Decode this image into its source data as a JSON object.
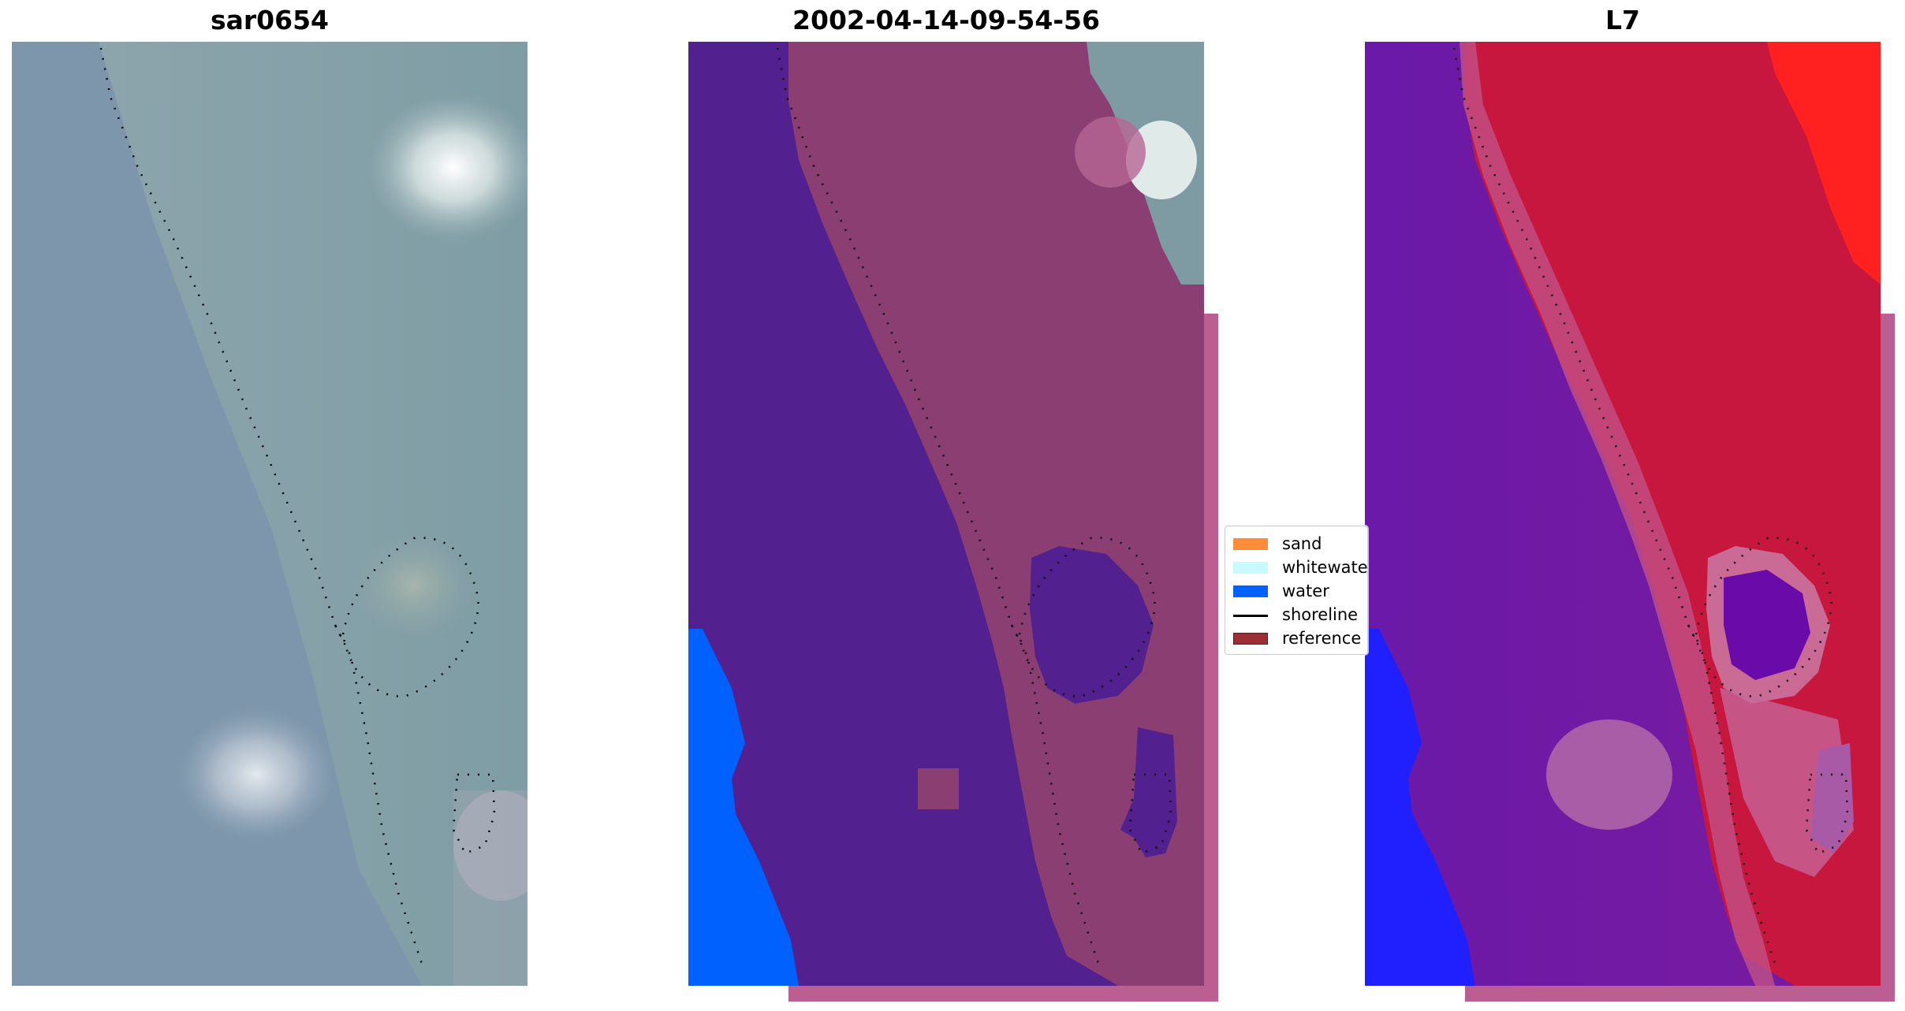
{
  "panels": [
    {
      "title": "sar0654"
    },
    {
      "title": "2002-04-14-09-54-56"
    },
    {
      "title": "L7"
    }
  ],
  "legend": [
    {
      "label": "sand",
      "color": "#ff8c38"
    },
    {
      "label": "whitewater",
      "color": "#c8fbff"
    },
    {
      "label": "water",
      "color": "#0061ff"
    },
    {
      "label": "shoreline",
      "color": "#000000"
    },
    {
      "label": "reference shoreline",
      "color": "#9b2f35"
    }
  ],
  "colors": {
    "panel1_water": "#7c95a9",
    "panel2_water_class": "#53208f",
    "panel2_land": "#8a3e72",
    "panel2_pad": "#bb5f92",
    "panel3_water": "#6a19a8",
    "panel3_land": "#c7173f",
    "water_class": "#0061ff"
  }
}
